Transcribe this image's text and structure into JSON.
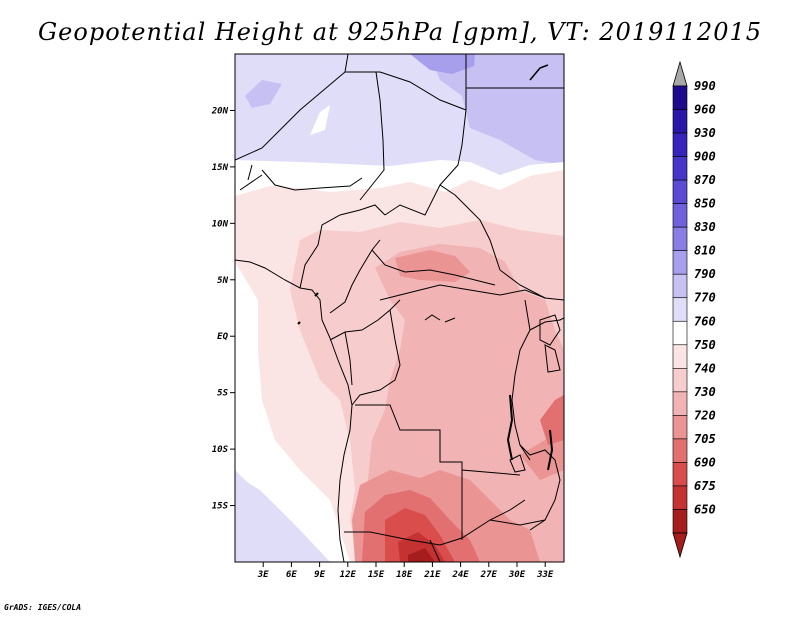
{
  "title": "Geopotential Height at 925hPa [gpm], VT: 2019112015",
  "credit": "GrADS: IGES/COLA",
  "map": {
    "lat_range": [
      -20,
      25
    ],
    "lon_range": [
      0,
      35
    ],
    "lat_ticks": [
      {
        "value": 20,
        "label": "20N"
      },
      {
        "value": 15,
        "label": "15N"
      },
      {
        "value": 10,
        "label": "10N"
      },
      {
        "value": 5,
        "label": "5N"
      },
      {
        "value": 0,
        "label": "EQ"
      },
      {
        "value": -5,
        "label": "5S"
      },
      {
        "value": -10,
        "label": "10S"
      },
      {
        "value": -15,
        "label": "15S"
      }
    ],
    "lon_ticks": [
      {
        "value": 3,
        "label": "3E"
      },
      {
        "value": 6,
        "label": "6E"
      },
      {
        "value": 9,
        "label": "9E"
      },
      {
        "value": 12,
        "label": "12E"
      },
      {
        "value": 15,
        "label": "15E"
      },
      {
        "value": 18,
        "label": "18E"
      },
      {
        "value": 21,
        "label": "21E"
      },
      {
        "value": 24,
        "label": "24E"
      },
      {
        "value": 27,
        "label": "27E"
      },
      {
        "value": 30,
        "label": "30E"
      },
      {
        "value": 33,
        "label": "33E"
      }
    ]
  },
  "colorbar": {
    "levels": [
      {
        "label": "990",
        "color": "#1d0b8c"
      },
      {
        "label": "960",
        "color": "#2a16a8"
      },
      {
        "label": "930",
        "color": "#3724bc"
      },
      {
        "label": "900",
        "color": "#4535c9"
      },
      {
        "label": "870",
        "color": "#5a4ad4"
      },
      {
        "label": "850",
        "color": "#7060dc"
      },
      {
        "label": "830",
        "color": "#8a7ee4"
      },
      {
        "label": "810",
        "color": "#a79eec"
      },
      {
        "label": "790",
        "color": "#c6c0f3"
      },
      {
        "label": "770",
        "color": "#e0ddf8"
      },
      {
        "label": "760",
        "color": "#ffffff"
      },
      {
        "label": "750",
        "color": "#fbe4e4"
      },
      {
        "label": "740",
        "color": "#f6cccc"
      },
      {
        "label": "730",
        "color": "#f1b3b3"
      },
      {
        "label": "720",
        "color": "#ea9494"
      },
      {
        "label": "705",
        "color": "#e27070"
      },
      {
        "label": "690",
        "color": "#d94d4d"
      },
      {
        "label": "675",
        "color": "#c53232"
      },
      {
        "label": "650",
        "color": "#a51d1d"
      }
    ],
    "upper_arrow_color": "#a8a8a8",
    "lower_arrow_color": "#a51d1d"
  }
}
